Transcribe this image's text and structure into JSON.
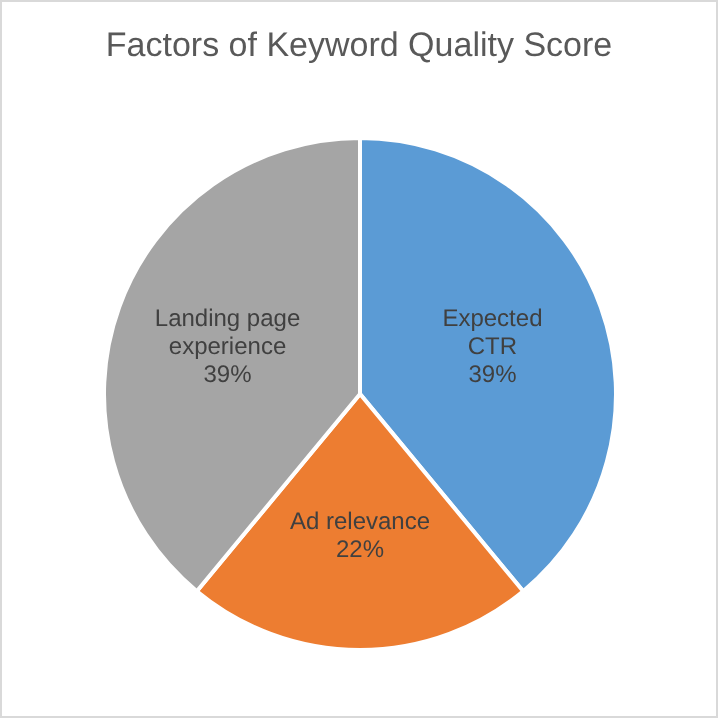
{
  "chart_data": {
    "type": "pie",
    "title": "Factors of Keyword Quality Score",
    "categories": [
      "Expected CTR",
      "Ad relevance",
      "Landing page experience"
    ],
    "values": [
      39,
      22,
      39
    ],
    "value_labels": [
      "39%",
      "22%",
      "39%"
    ],
    "colors": [
      "#5b9bd5",
      "#ed7d31",
      "#a5a5a5"
    ]
  }
}
